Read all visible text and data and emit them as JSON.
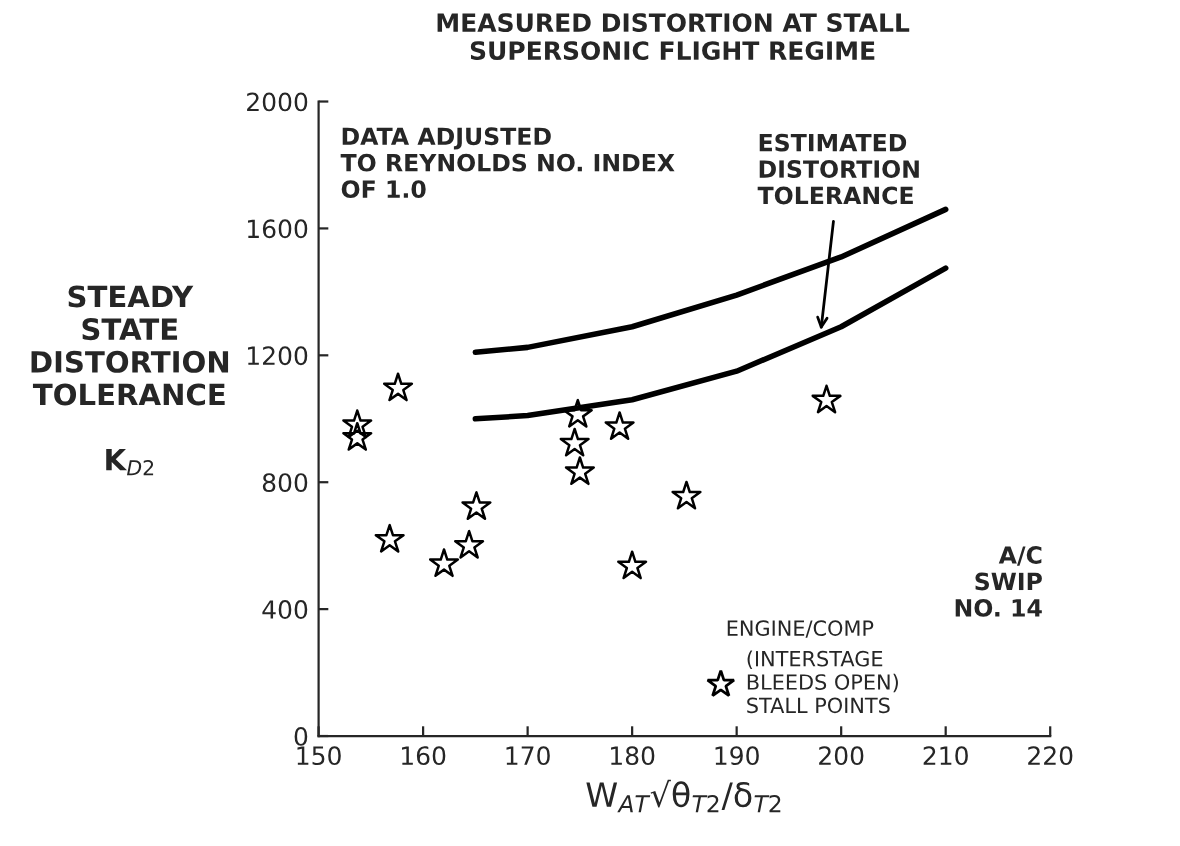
{
  "chart_data": {
    "type": "scatter",
    "title": "MEASURED DISTORTION AT STALL\nSUPERSONIC FLIGHT REGIME",
    "xlabel": "W$_{AT}$√θ$_{T2}$/δ$_{T2}$",
    "ylabel": "STEADY\nSTATE\nDISTORTION\nTOLERANCE\n\nK$_{D2}$",
    "xlim": [
      150,
      220
    ],
    "xticks": [
      150,
      160,
      170,
      180,
      190,
      200,
      210,
      220
    ],
    "ylim": [
      0,
      2000
    ],
    "yticks": [
      0,
      400,
      800,
      1200,
      1600,
      2000
    ],
    "legend": "bottom right",
    "legend_title": "ENGINE/COMP",
    "series": [
      {
        "name": "(INTERSTAGE\nBLEEDS OPEN)\nSTALL POINTS",
        "color": "#000000",
        "marker": "star",
        "x": [
          153.7,
          153.7,
          157.6,
          156.8,
          162.0,
          164.4,
          165.1,
          174.8,
          174.5,
          175.0,
          178.8,
          180.0,
          185.2,
          198.6
        ],
        "values": [
          980,
          940,
          1096,
          619,
          542,
          600,
          722,
          1013,
          922,
          832,
          974,
          535,
          755,
          1058
        ]
      },
      {
        "type": "line",
        "color": "#000000",
        "marker": "none",
        "line_style": "solid",
        "x": [
          165,
          170,
          180,
          190,
          200,
          210
        ],
        "values": [
          1210,
          1225,
          1290,
          1390,
          1510,
          1660
        ]
      },
      {
        "type": "line",
        "color": "#000000",
        "marker": "none",
        "line_style": "solid",
        "x": [
          165,
          170,
          180,
          190,
          200,
          210
        ],
        "values": [
          1000,
          1010,
          1060,
          1150,
          1290,
          1475
        ]
      }
    ],
    "annotations": [
      "DATA ADJUSTED\nTO REYNOLDS NO. INDEX\nOF 1.0",
      {
        "text": "ESTIMATED\nDISTORTION\nTOLERANCE",
        "x": 198,
        "y": 1262
      },
      "A/C\nSWIP\nNO. 14"
    ]
  }
}
